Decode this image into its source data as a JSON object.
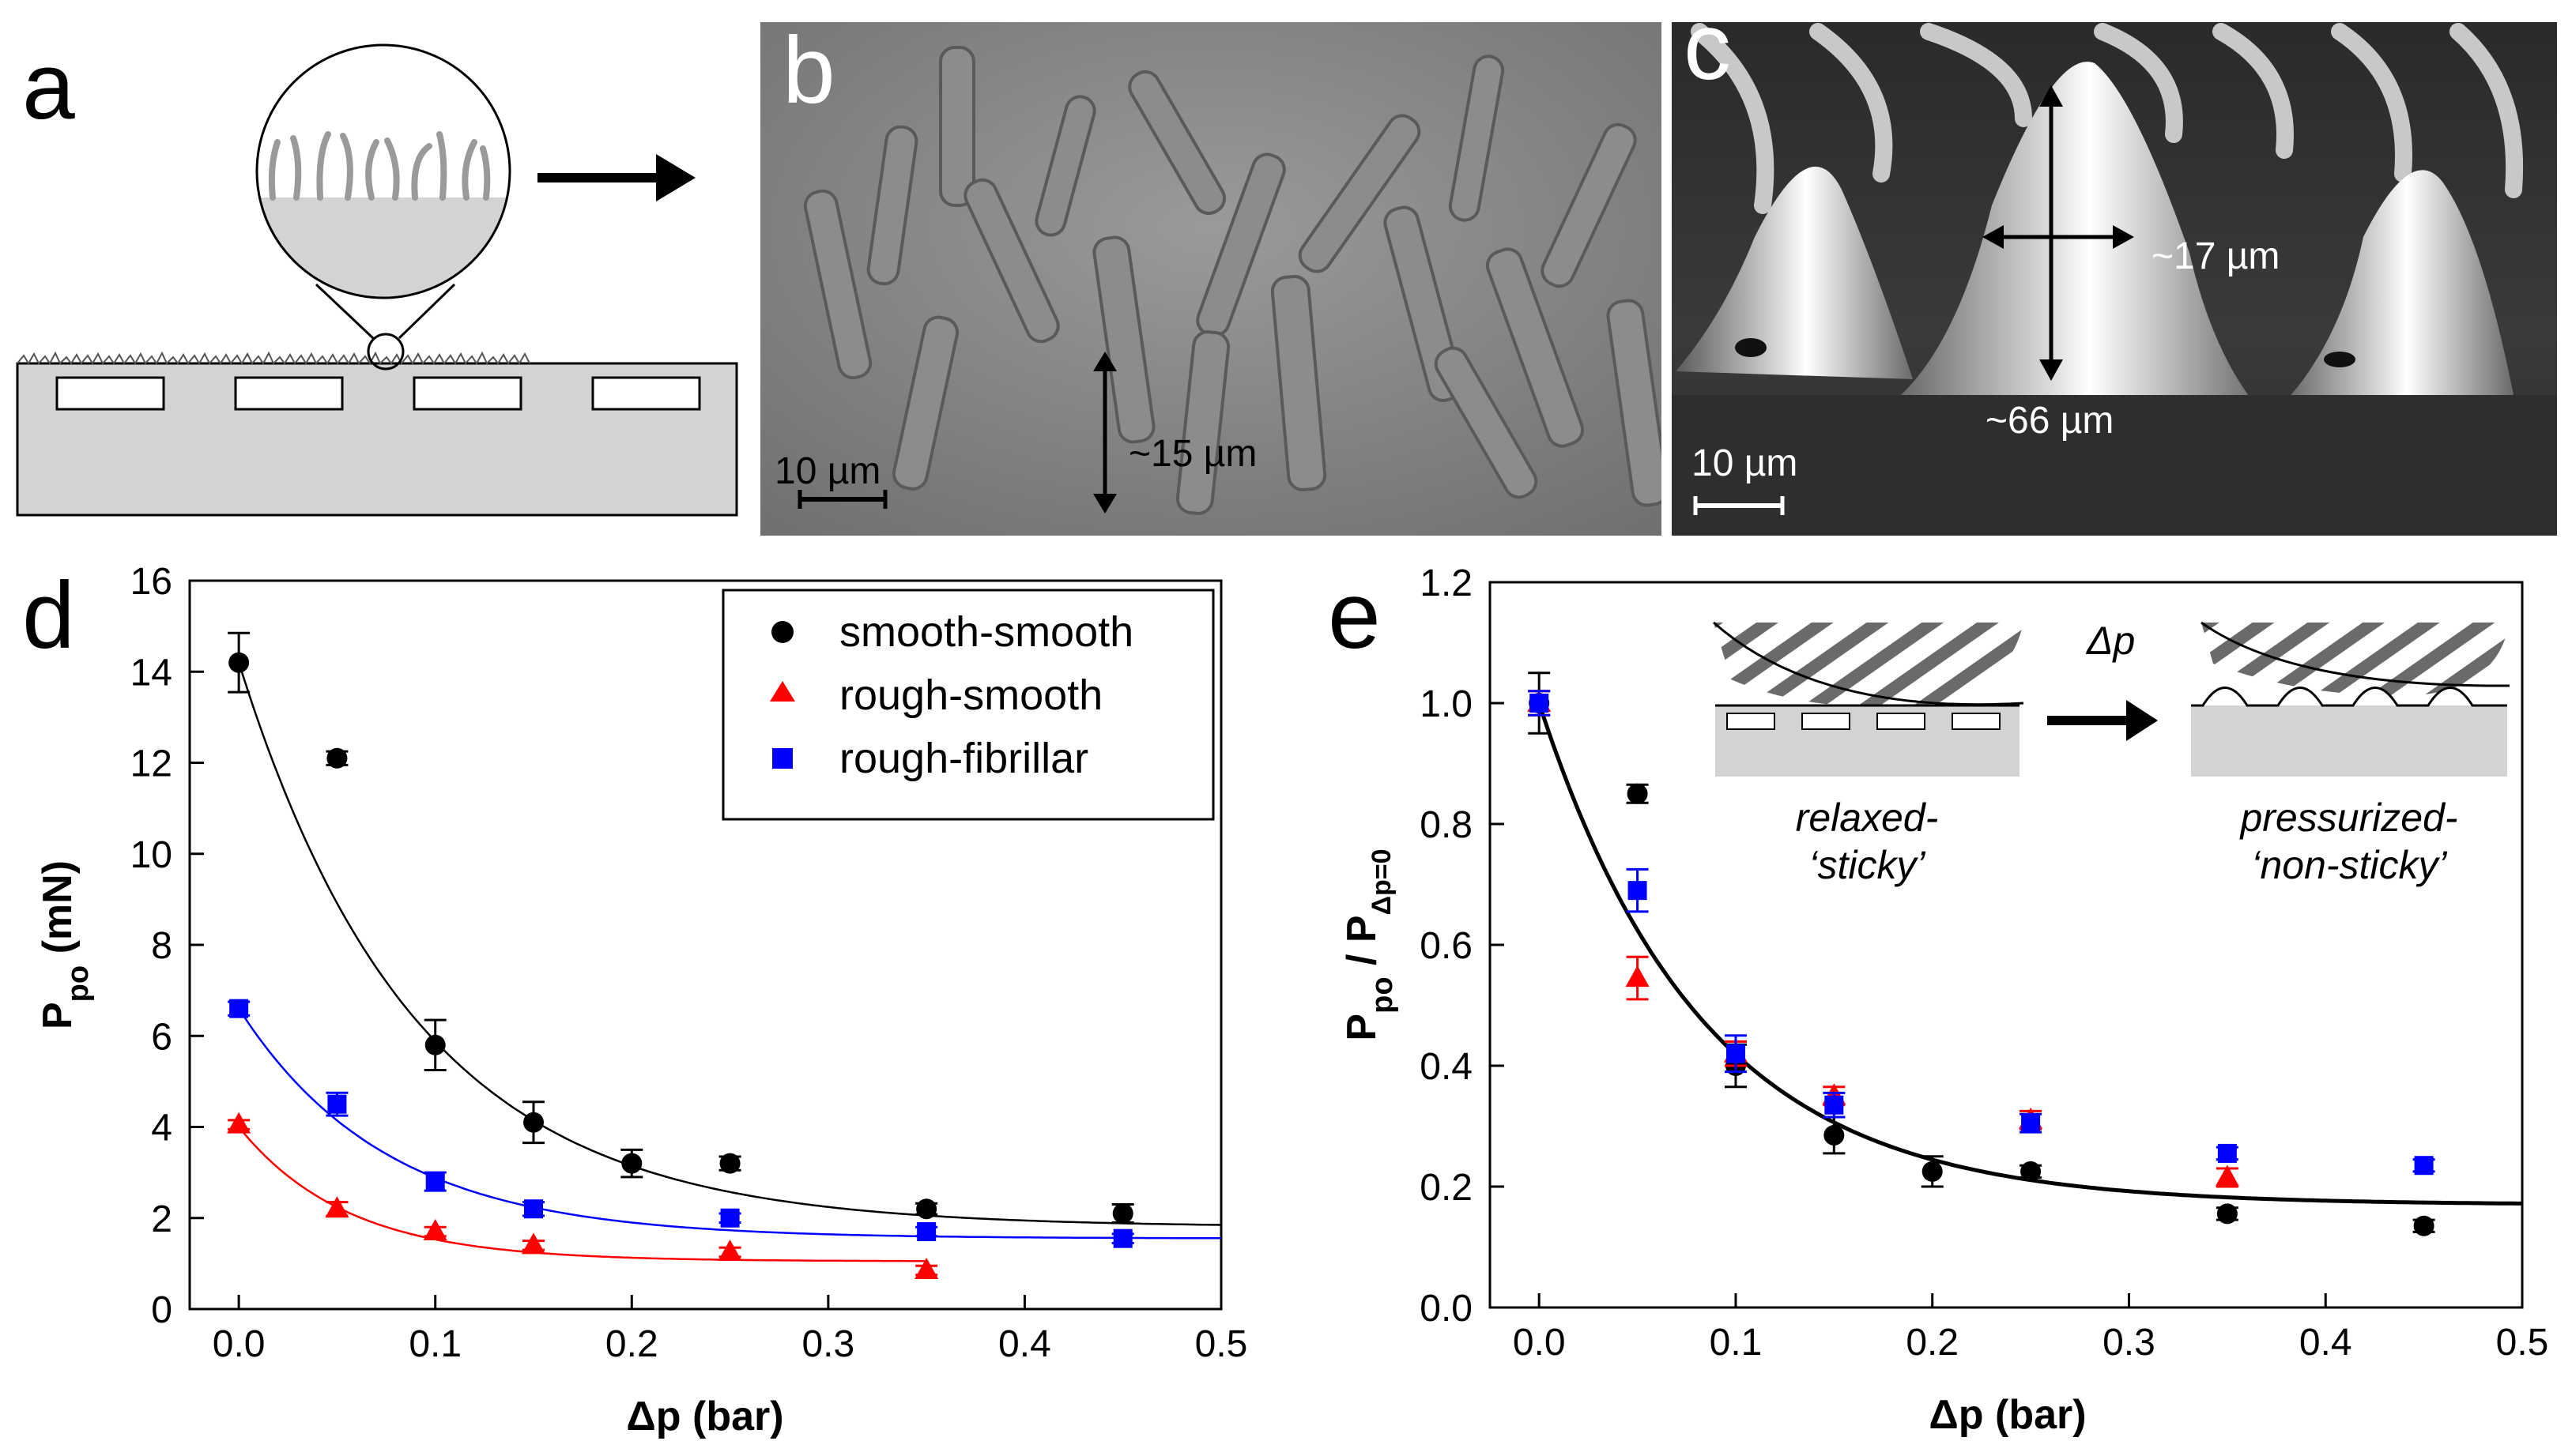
{
  "panels": {
    "a": {
      "letter": "a"
    },
    "b": {
      "letter": "b",
      "scale_bar": "10 µm",
      "height_label": "~15 µm"
    },
    "c": {
      "letter": "c",
      "scale_bar": "10 µm",
      "width_label": "~17 µm",
      "height_label": "~66 µm"
    },
    "d": {
      "letter": "d"
    },
    "e": {
      "letter": "e",
      "inset": {
        "arrow_label": "Δp",
        "left_label_1": "relaxed-",
        "left_label_2": "‘sticky’",
        "right_label_1": "pressurized-",
        "right_label_2": "‘non-sticky’"
      }
    }
  },
  "colors": {
    "smooth": "#000000",
    "rough_smooth": "#ff0000",
    "rough_fibrillar": "#0000ff",
    "fit_d_black": "#000000",
    "fit_d_blue": "#0000ff",
    "fit_d_red": "#ff0000"
  },
  "chart_data": [
    {
      "id": "d",
      "type": "scatter",
      "xlabel": "Δp (bar)",
      "ylabel_main": "P",
      "ylabel_sub": "po",
      "ylabel_unit": " (mN)",
      "xlim": [
        -0.025,
        0.5
      ],
      "ylim": [
        0,
        16
      ],
      "xticks": [
        "0.0",
        "0.1",
        "0.2",
        "0.3",
        "0.4",
        "0.5"
      ],
      "yticks": [
        "0",
        "2",
        "4",
        "6",
        "8",
        "10",
        "12",
        "14",
        "16"
      ],
      "legend": [
        "smooth-smooth",
        "rough-smooth",
        "rough-fibrillar"
      ],
      "series": [
        {
          "name": "smooth-smooth",
          "marker": "circle",
          "color": "#000000",
          "x": [
            0.0,
            0.05,
            0.1,
            0.15,
            0.2,
            0.25,
            0.35,
            0.45
          ],
          "y": [
            14.2,
            12.1,
            5.8,
            4.1,
            3.2,
            3.2,
            2.2,
            2.1
          ],
          "err": [
            0.65,
            0.15,
            0.55,
            0.45,
            0.3,
            0.15,
            0.12,
            0.2
          ]
        },
        {
          "name": "rough-smooth",
          "marker": "triangle",
          "color": "#ff0000",
          "x": [
            0.0,
            0.05,
            0.1,
            0.15,
            0.25,
            0.35
          ],
          "y": [
            4.05,
            2.2,
            1.7,
            1.4,
            1.25,
            0.85
          ],
          "err": [
            0.1,
            0.15,
            0.1,
            0.1,
            0.1,
            0.1
          ]
        },
        {
          "name": "rough-fibrillar",
          "marker": "square",
          "color": "#0000ff",
          "x": [
            0.0,
            0.05,
            0.1,
            0.15,
            0.25,
            0.35,
            0.45
          ],
          "y": [
            6.6,
            4.5,
            2.8,
            2.2,
            2.0,
            1.7,
            1.55
          ],
          "err": [
            0.15,
            0.25,
            0.2,
            0.15,
            0.1,
            0.1,
            0.1
          ]
        }
      ],
      "fits": [
        {
          "name": "smooth-smooth fit",
          "color": "#000000",
          "A": 12.4,
          "tau": 0.09,
          "C": 1.8,
          "x_end": 0.5
        },
        {
          "name": "rough-fibrillar fit",
          "color": "#0000ff",
          "A": 5.05,
          "tau": 0.075,
          "C": 1.55,
          "x_end": 0.5
        },
        {
          "name": "rough-smooth fit",
          "color": "#ff0000",
          "A": 2.95,
          "tau": 0.055,
          "C": 1.05,
          "x_end": 0.35
        }
      ]
    },
    {
      "id": "e",
      "type": "scatter",
      "xlabel": "Δp (bar)",
      "ylabel_main": "P",
      "ylabel_sub": "po",
      "ylabel_slash": " / P",
      "ylabel_sub2": "Δp=0",
      "xlim": [
        -0.025,
        0.5
      ],
      "ylim": [
        0,
        1.2
      ],
      "xticks": [
        "0.0",
        "0.1",
        "0.2",
        "0.3",
        "0.4",
        "0.5"
      ],
      "yticks": [
        "0.0",
        "0.2",
        "0.4",
        "0.6",
        "0.8",
        "1.0",
        "1.2"
      ],
      "series": [
        {
          "name": "smooth-smooth",
          "marker": "circle",
          "color": "#000000",
          "x": [
            0.0,
            0.05,
            0.1,
            0.15,
            0.2,
            0.25,
            0.35,
            0.45
          ],
          "y": [
            1.0,
            0.85,
            0.4,
            0.285,
            0.225,
            0.225,
            0.155,
            0.135
          ],
          "err": [
            0.05,
            0.015,
            0.035,
            0.03,
            0.025,
            0.01,
            0.01,
            0.01
          ]
        },
        {
          "name": "rough-smooth",
          "marker": "triangle",
          "color": "#ff0000",
          "x": [
            0.0,
            0.05,
            0.1,
            0.15,
            0.25,
            0.35
          ],
          "y": [
            1.0,
            0.545,
            0.42,
            0.35,
            0.31,
            0.215
          ],
          "err": [
            0.02,
            0.035,
            0.02,
            0.015,
            0.015,
            0.015
          ]
        },
        {
          "name": "rough-fibrillar",
          "marker": "square",
          "color": "#0000ff",
          "x": [
            0.0,
            0.05,
            0.1,
            0.15,
            0.25,
            0.35,
            0.45
          ],
          "y": [
            1.0,
            0.69,
            0.42,
            0.335,
            0.305,
            0.255,
            0.235
          ],
          "err": [
            0.02,
            0.035,
            0.03,
            0.02,
            0.015,
            0.01,
            0.01
          ]
        }
      ],
      "fits": [
        {
          "name": "normalized fit",
          "color": "#000000",
          "A": 0.83,
          "tau": 0.083,
          "C": 0.17,
          "x_end": 0.5
        }
      ]
    }
  ]
}
